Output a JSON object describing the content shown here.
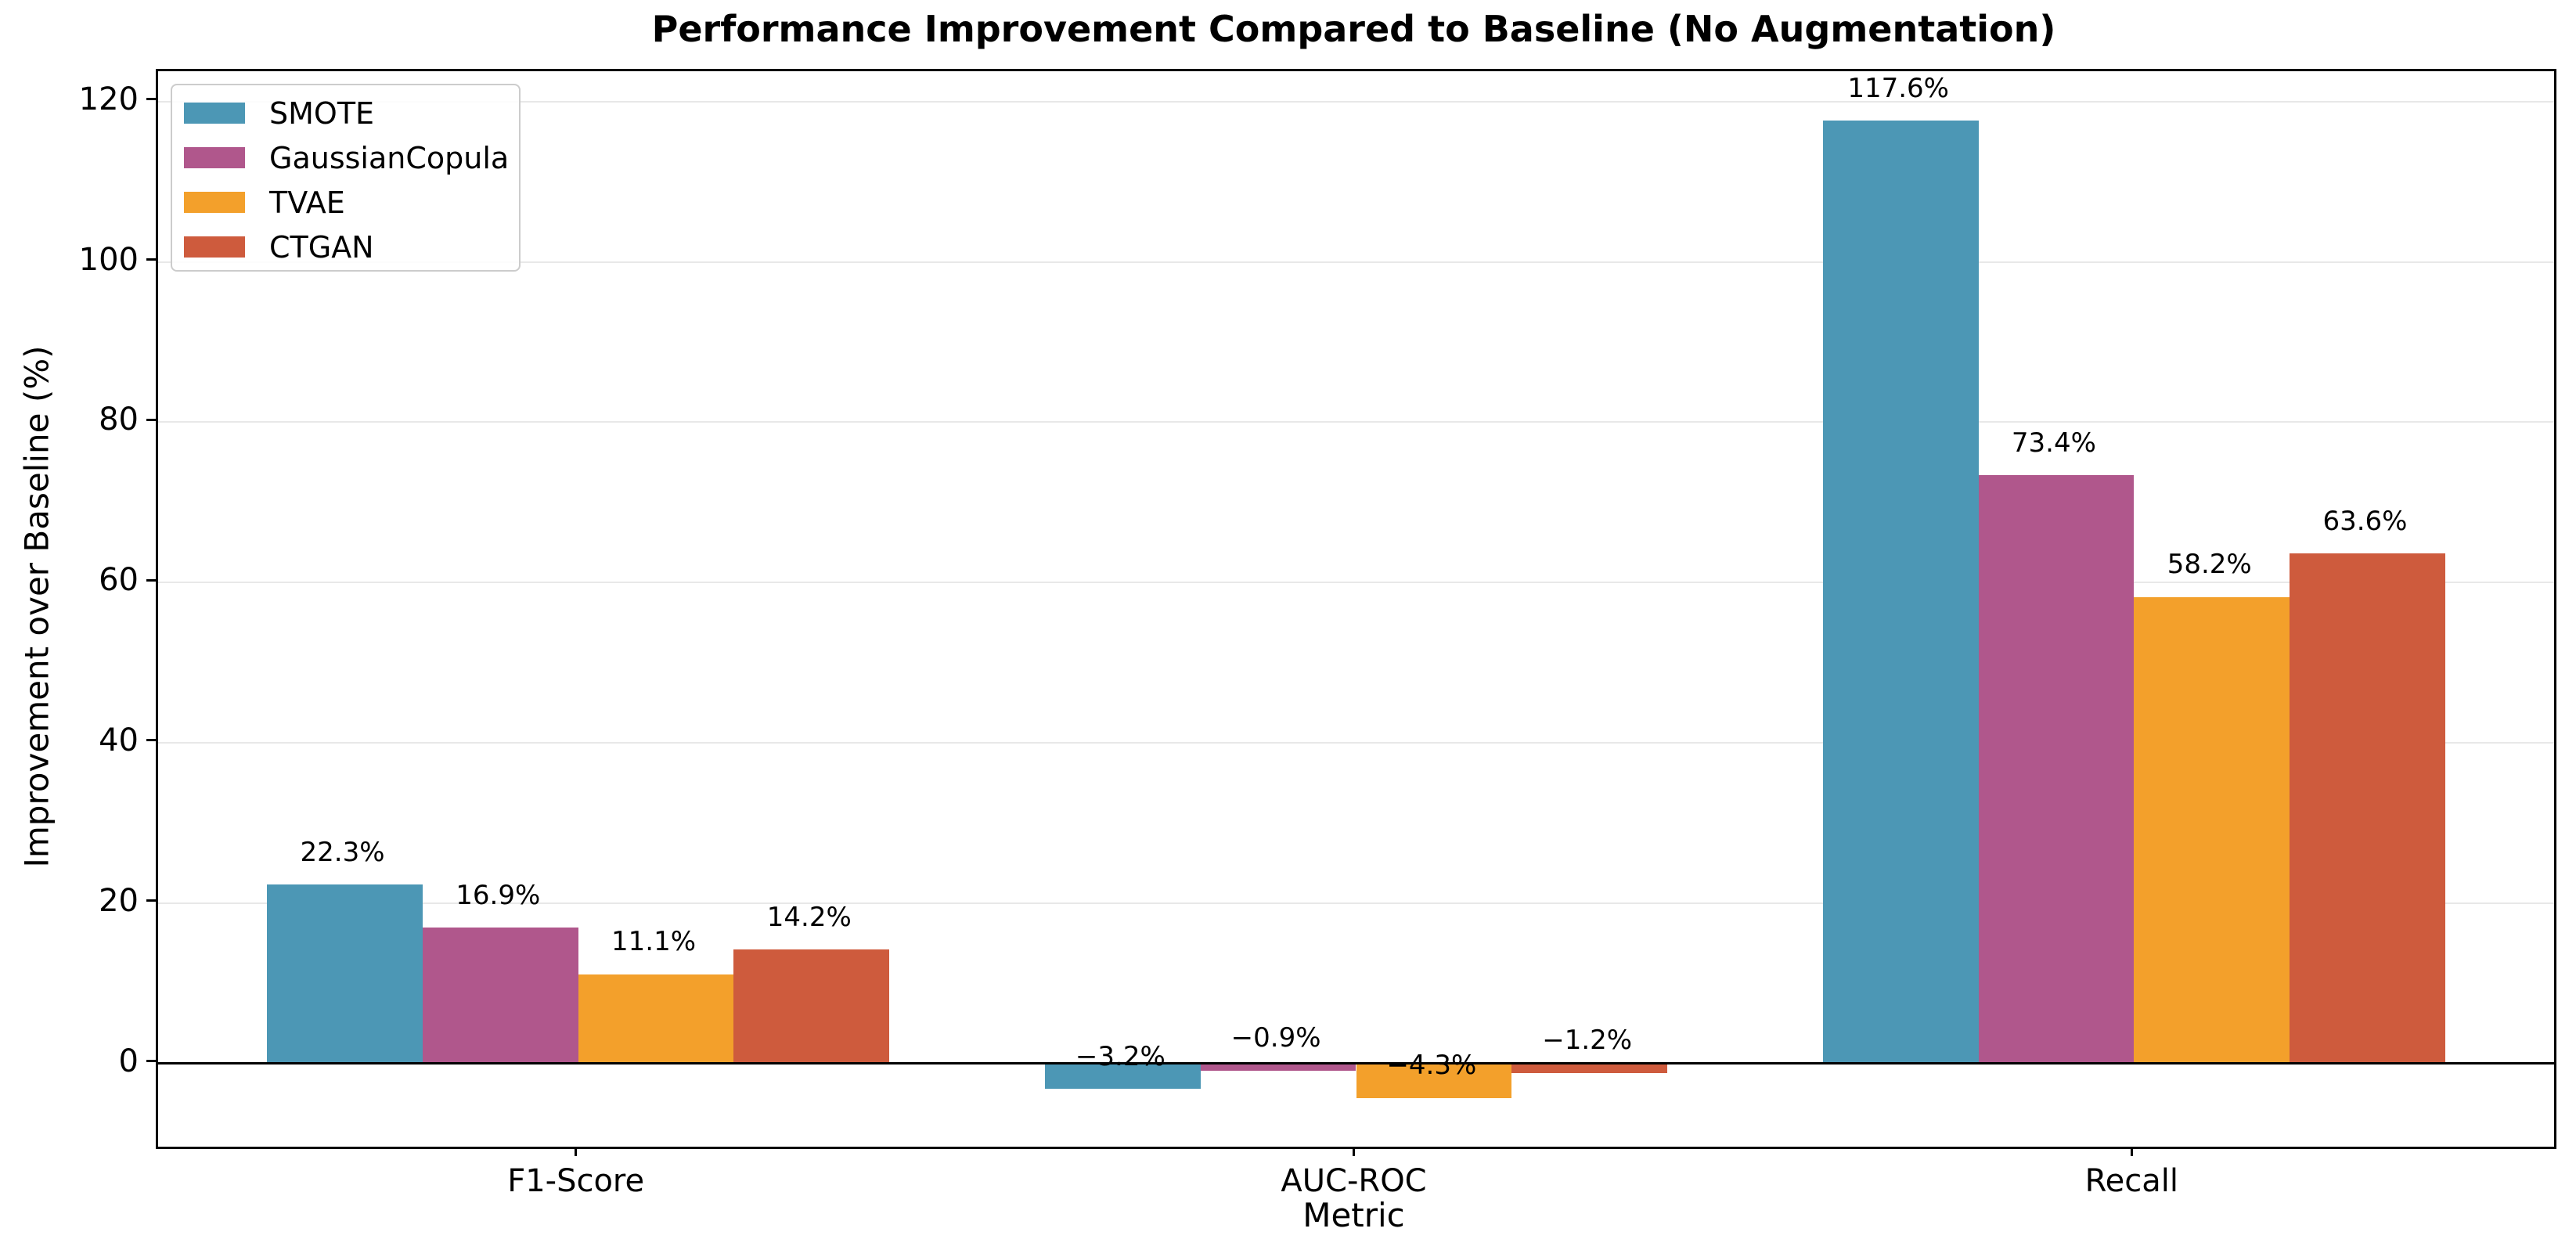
{
  "chart_data": {
    "type": "bar",
    "title": "Performance Improvement Compared to Baseline (No Augmentation)",
    "xlabel": "Metric",
    "ylabel": "Improvement over Baseline (%)",
    "categories": [
      "F1-Score",
      "AUC-ROC",
      "Recall"
    ],
    "series": [
      {
        "name": "SMOTE",
        "color": "#4C97B5",
        "values": [
          22.3,
          -3.2,
          117.6
        ],
        "labels": [
          "22.3%",
          "−3.2%",
          "117.6%"
        ]
      },
      {
        "name": "GaussianCopula",
        "color": "#B0578C",
        "values": [
          16.9,
          -0.9,
          73.4
        ],
        "labels": [
          "16.9%",
          "−0.9%",
          "73.4%"
        ]
      },
      {
        "name": "TVAE",
        "color": "#F3A02B",
        "values": [
          11.1,
          -4.3,
          58.2
        ],
        "labels": [
          "11.1%",
          "−4.3%",
          "58.2%"
        ]
      },
      {
        "name": "CTGAN",
        "color": "#CE5B3D",
        "values": [
          14.2,
          -1.2,
          63.6
        ],
        "labels": [
          "14.2%",
          "−1.2%",
          "63.6%"
        ]
      }
    ],
    "yticks": [
      0,
      20,
      40,
      60,
      80,
      100,
      120
    ],
    "ylim": [
      -10.4,
      123.8
    ],
    "xlim": [
      -0.54,
      2.54
    ],
    "bar_width": 0.2,
    "grid": true,
    "legend_position": "upper left",
    "colors": {
      "grid": "#e8e8e8",
      "spine": "#000000",
      "zero_line": "#000000",
      "background": "#ffffff",
      "legend_border": "#cccccc"
    }
  }
}
